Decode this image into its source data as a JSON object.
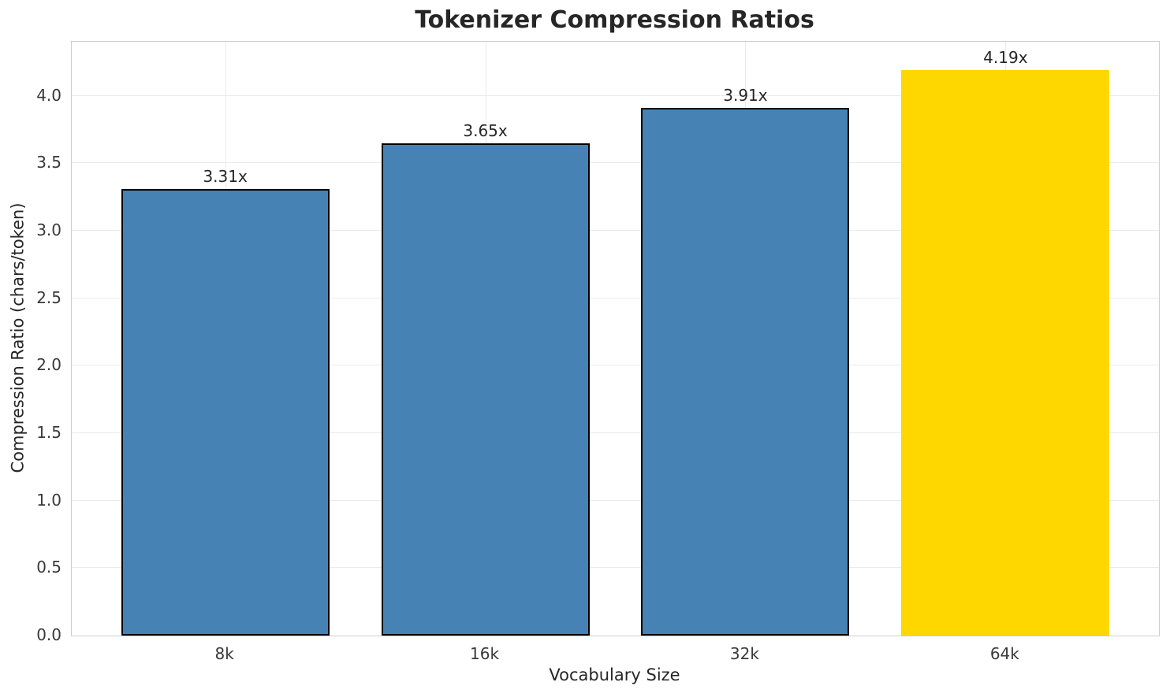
{
  "chart_data": {
    "type": "bar",
    "title": "Tokenizer Compression Ratios",
    "xlabel": "Vocabulary Size",
    "ylabel": "Compression Ratio (chars/token)",
    "categories": [
      "8k",
      "16k",
      "32k",
      "64k"
    ],
    "values": [
      3.31,
      3.65,
      3.91,
      4.19
    ],
    "bar_labels": [
      "3.31x",
      "3.65x",
      "3.91x",
      "4.19x"
    ],
    "bar_colors": [
      "#4682b4",
      "#4682b4",
      "#4682b4",
      "#ffd700"
    ],
    "bar_edge_colors": [
      "#000000",
      "#000000",
      "#000000",
      "none"
    ],
    "ylim": [
      0,
      4.4
    ],
    "ytick_labels": [
      "0.0",
      "0.5",
      "1.0",
      "1.5",
      "2.0",
      "2.5",
      "3.0",
      "3.5",
      "4.0"
    ],
    "grid": true,
    "legend_position": "none"
  },
  "style": {
    "background_color": "#ffffff",
    "grid_color": "#ebebeb",
    "spine_color": "#cdcdcd",
    "text_color": "#3a3a3a",
    "title_color": "#262626"
  }
}
